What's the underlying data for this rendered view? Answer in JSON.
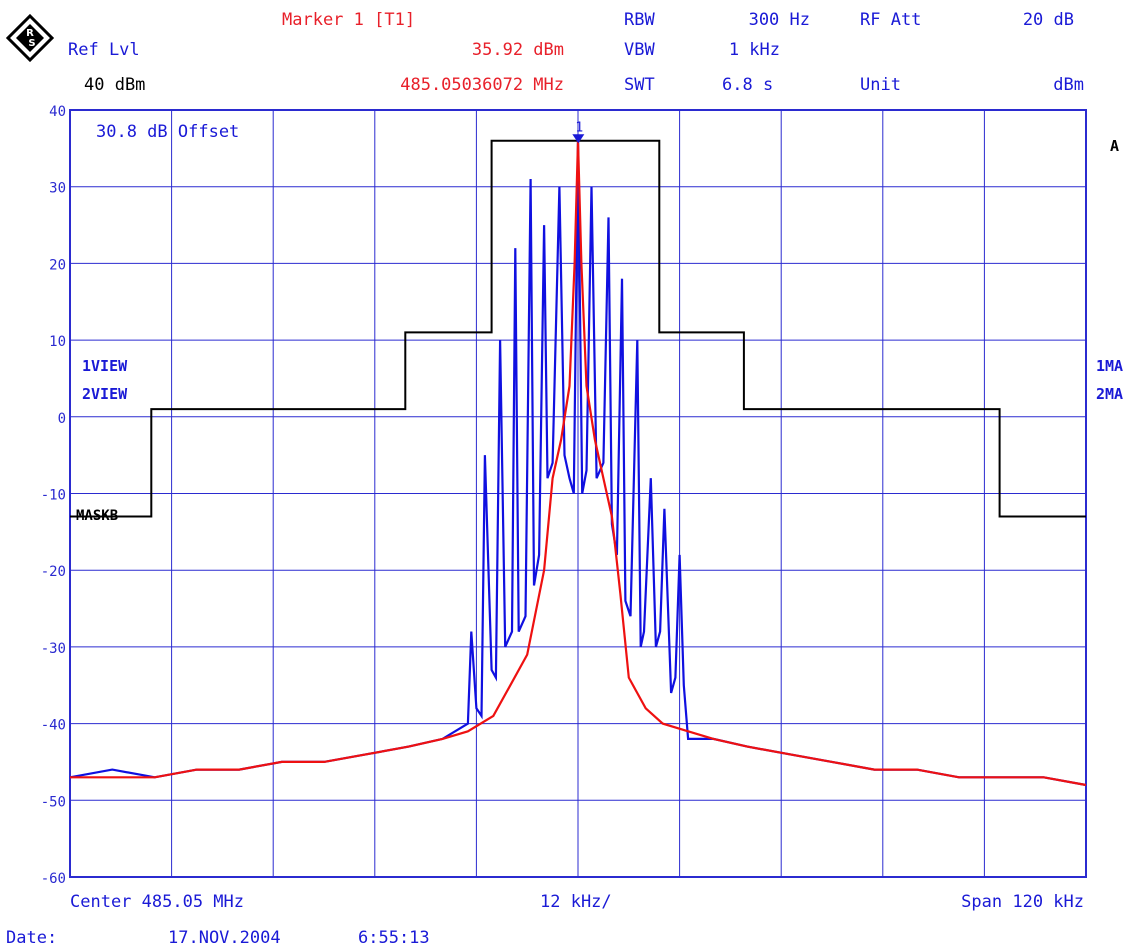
{
  "header": {
    "marker_title": "Marker 1 [T1]",
    "marker_level": "35.92 dBm",
    "marker_freq": "485.05036072 MHz",
    "ref_label": "Ref Lvl",
    "ref_value": "40 dBm",
    "rbw_label": "RBW",
    "rbw_value": "300 Hz",
    "vbw_label": "VBW",
    "vbw_value": "1 kHz",
    "swt_label": "SWT",
    "swt_value": "6.8 s",
    "rfatt_label": "RF Att",
    "rfatt_value": "20 dB",
    "unit_label": "Unit",
    "unit_value": "dBm"
  },
  "side": {
    "trace_a": "A",
    "view1": "1VIEW",
    "view2": "2VIEW",
    "ma1": "1MA",
    "ma2": "2MA"
  },
  "footer": {
    "center": "Center 485.05 MHz",
    "div": "12 kHz/",
    "span": "Span 120 kHz",
    "date_label": "Date:",
    "date_value": "17.NOV.2004",
    "time_value": "6:55:13"
  },
  "colors": {
    "grid": "#2b2bd0",
    "trace1": "#1010e0",
    "trace2": "#ee1111",
    "mask": "#000000",
    "marker": "#1a1ad6"
  },
  "chart_data": {
    "type": "line",
    "title": "",
    "xlabel": "",
    "ylabel": "",
    "xlim": [
      -60,
      60
    ],
    "ylim": [
      -60,
      40
    ],
    "yticks": [
      40,
      30,
      20,
      10,
      0,
      -10,
      -20,
      -30,
      -40,
      -50,
      -60
    ],
    "ytick_labels": [
      "40",
      "30",
      "20",
      "10",
      "0",
      "-10",
      "-20",
      "-30",
      "-40",
      "-50",
      "-60"
    ],
    "grid": true,
    "offset_note": "30.8 dB Offset",
    "marker": {
      "label": "1",
      "x": 0.04,
      "y": 35.92
    },
    "mask": {
      "name": "MASKB",
      "x": [
        -60,
        -50.4,
        -50.4,
        -20.4,
        -20.4,
        -10.2,
        -10.2,
        9.6,
        9.6,
        19.6,
        19.6,
        49.8,
        49.8,
        60
      ],
      "y": [
        -13,
        -13,
        1,
        1,
        11,
        11,
        36,
        36,
        11,
        11,
        1,
        1,
        -13,
        -13
      ]
    },
    "series": [
      {
        "values_x": [
          -60,
          -55,
          -50,
          -45,
          -40,
          -35,
          -30,
          -25,
          -20,
          -16,
          -13,
          -12.6,
          -12,
          -11.4,
          -11,
          -10.2,
          -9.7,
          -9.2,
          -8.6,
          -7.8,
          -7.4,
          -7,
          -6.2,
          -5.6,
          -5.2,
          -4.6,
          -4,
          -3.6,
          -3,
          -2.2,
          -1.6,
          -1,
          -0.5,
          0,
          0.5,
          1,
          1.6,
          2.2,
          3,
          3.6,
          4,
          4.6,
          5.2,
          5.6,
          6.2,
          7,
          7.4,
          7.8,
          8.6,
          9.2,
          9.7,
          10.2,
          11,
          11.5,
          12,
          12.5,
          13,
          16,
          20,
          25,
          30,
          35,
          40,
          45,
          50,
          55,
          60
        ],
        "values_y": [
          -47,
          -46,
          -47,
          -46,
          -46,
          -45,
          -45,
          -44,
          -43,
          -42,
          -40,
          -28,
          -38,
          -39,
          -5,
          -33,
          -34,
          10,
          -30,
          -28,
          22,
          -28,
          -26,
          31,
          -22,
          -18,
          25,
          -8,
          -6,
          30,
          -5,
          -8,
          -10,
          36,
          -10,
          -7,
          30,
          -8,
          -6,
          26,
          -14,
          -18,
          18,
          -24,
          -26,
          10,
          -30,
          -28,
          -8,
          -30,
          -28,
          -12,
          -36,
          -34,
          -18,
          -35,
          -42,
          -42,
          -43,
          -44,
          -45,
          -46,
          -46,
          -47,
          -47,
          -47,
          -48
        ]
      },
      {
        "values_x": [
          -60,
          -55,
          -50,
          -45,
          -40,
          -35,
          -30,
          -25,
          -20,
          -16,
          -13,
          -10,
          -8,
          -6,
          -4,
          -3,
          -2,
          -1,
          -0.4,
          0,
          0.4,
          1,
          2,
          3,
          4,
          5,
          6,
          8,
          10,
          13,
          16,
          20,
          25,
          30,
          35,
          40,
          45,
          50,
          55,
          60
        ],
        "values_y": [
          -47,
          -47,
          -47,
          -46,
          -46,
          -45,
          -45,
          -44,
          -43,
          -42,
          -41,
          -39,
          -35,
          -31,
          -20,
          -8,
          -3,
          4,
          20,
          36,
          20,
          4,
          -3,
          -8,
          -13,
          -23,
          -34,
          -38,
          -40,
          -41,
          -42,
          -43,
          -44,
          -45,
          -46,
          -46,
          -47,
          -47,
          -47,
          -48
        ]
      }
    ]
  }
}
